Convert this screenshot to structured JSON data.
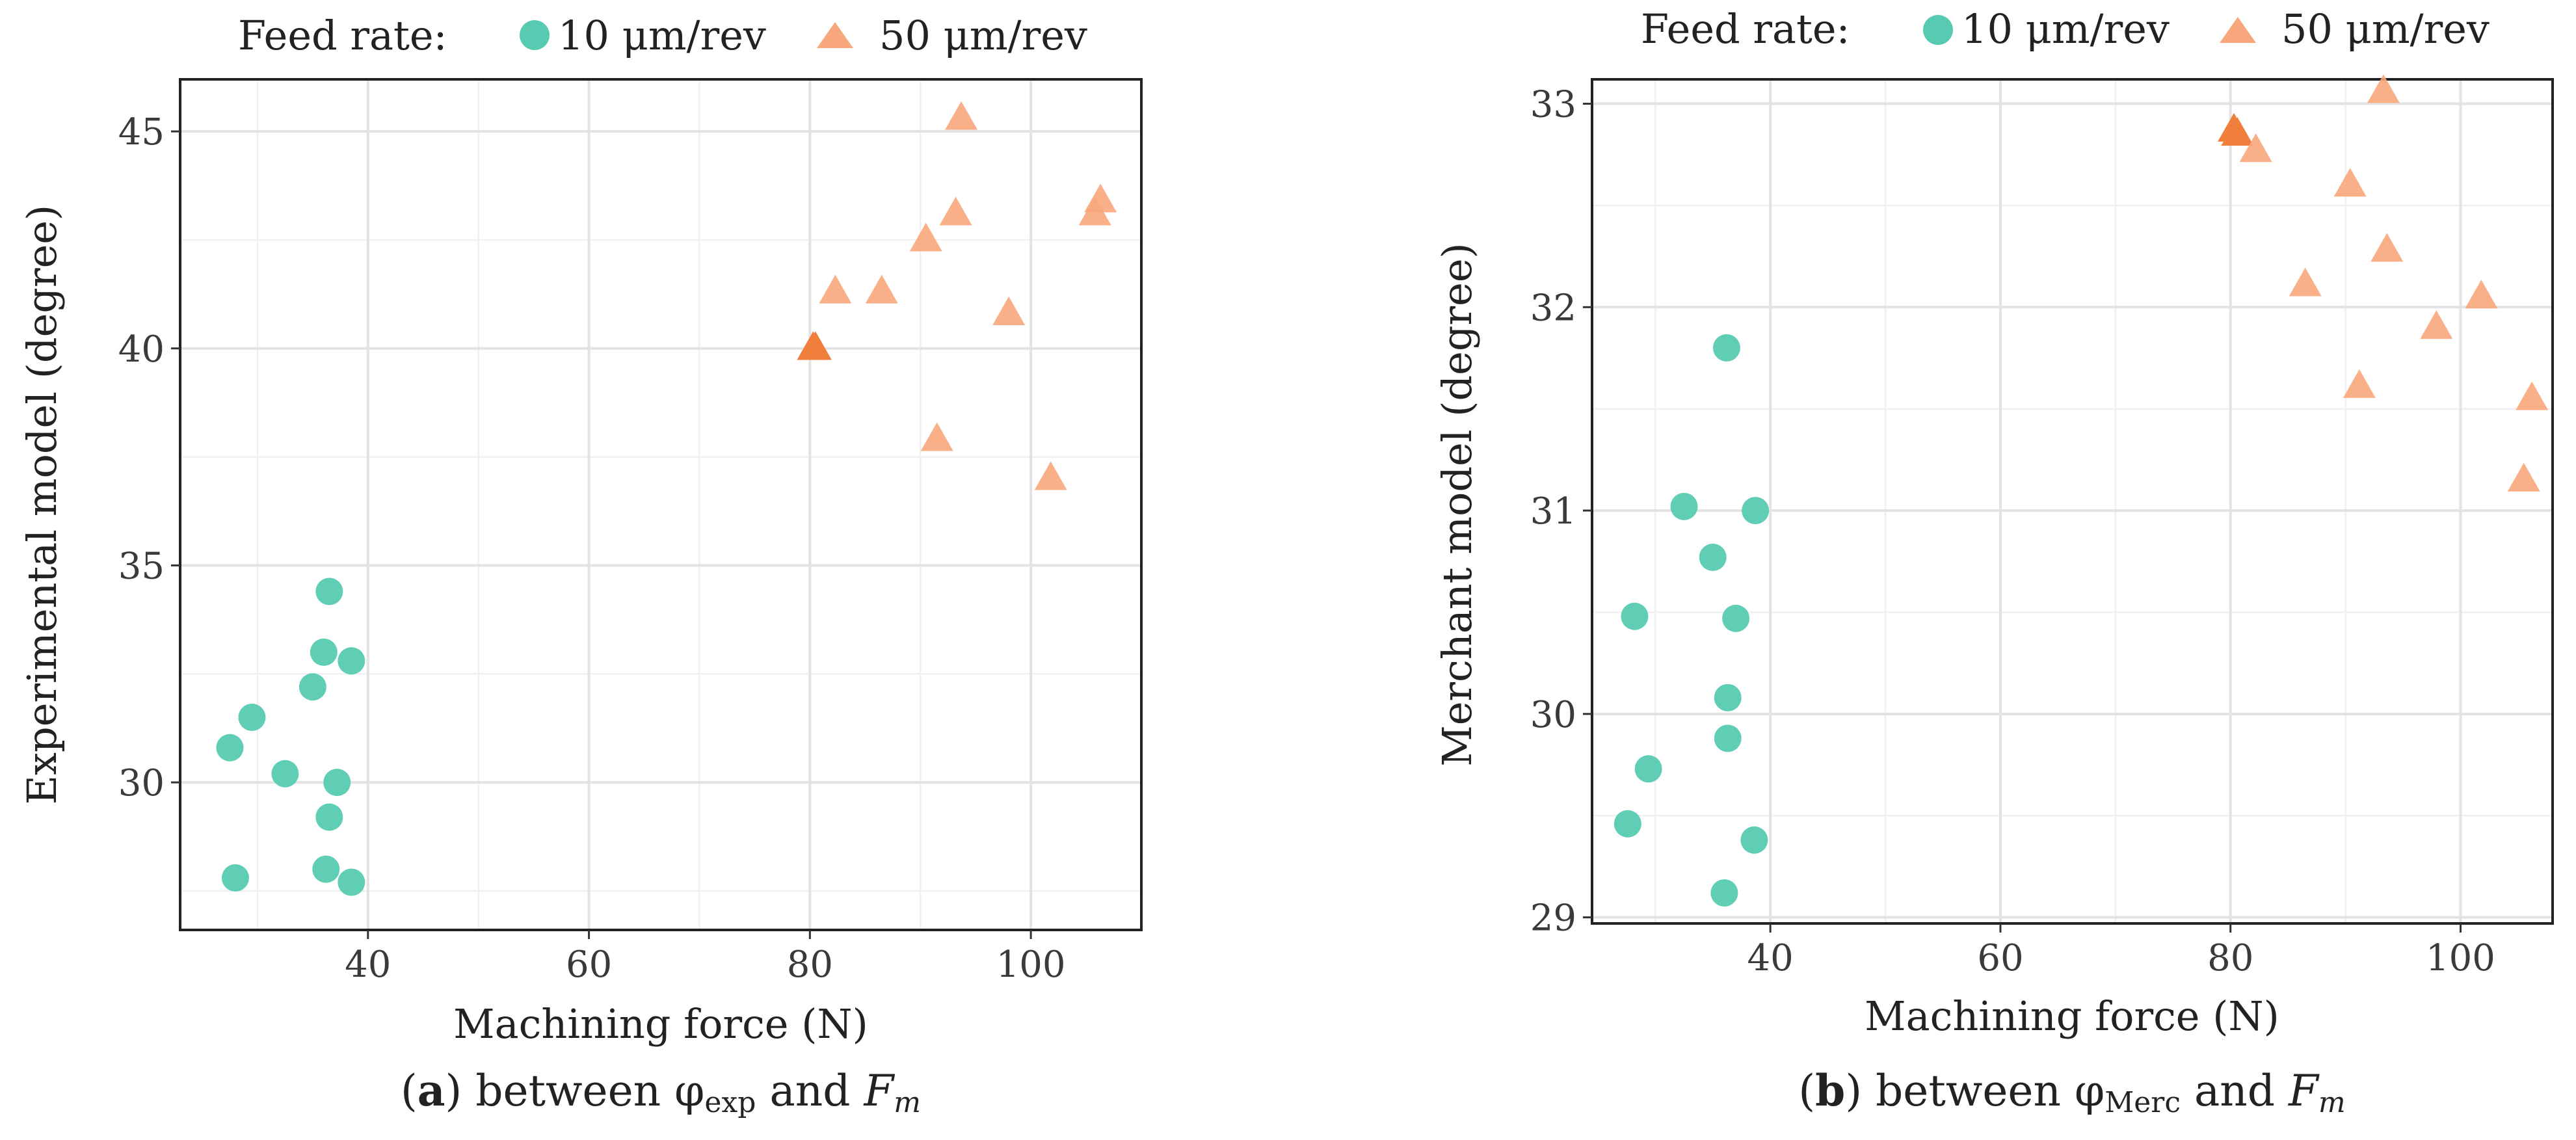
{
  "colors": {
    "series_10": "#56cbb1",
    "series_50": "#f8a77c",
    "series_50_dark": "#f07f3c",
    "grid": "#e3e3e3",
    "text": "#222222"
  },
  "legend": {
    "title": "Feed rate:",
    "items": [
      "10 μm/rev",
      "50 μm/rev"
    ]
  },
  "chart_data": [
    {
      "type": "scatter",
      "id": "a",
      "xlabel": "Machining force (N)",
      "ylabel": "Experimental  model (degree)",
      "xlim": [
        23,
        110
      ],
      "ylim": [
        26.6,
        46.2
      ],
      "xticks": [
        40,
        60,
        80,
        100
      ],
      "yticks": [
        30,
        35,
        40,
        45
      ],
      "caption": {
        "letter": "a",
        "open": "(",
        "close": ")",
        "text": " between φ",
        "sub": "exp",
        "and": " and ",
        "var": "F",
        "var_sub": "m"
      },
      "series": [
        {
          "name": "10 μm/rev",
          "marker": "circle",
          "x": [
            36.5,
            36.0,
            38.5,
            35.0,
            29.5,
            27.5,
            32.5,
            37.2,
            36.5,
            36.2,
            28.0,
            38.5
          ],
          "y": [
            34.4,
            33.0,
            32.8,
            32.2,
            31.5,
            30.8,
            30.2,
            30.0,
            29.2,
            28.0,
            27.8,
            27.7
          ]
        },
        {
          "name": "50 μm/rev",
          "marker": "triangle",
          "x": [
            93.7,
            105.8,
            106.3,
            93.2,
            90.5,
            82.3,
            86.5,
            98.0,
            80.3,
            80.5,
            91.5,
            101.8
          ],
          "y": [
            45.3,
            43.1,
            43.4,
            43.1,
            42.5,
            41.3,
            41.3,
            40.8,
            40.0,
            40.0,
            37.9,
            37.0
          ],
          "dark": [
            false,
            false,
            false,
            false,
            false,
            false,
            false,
            false,
            true,
            true,
            false,
            false
          ]
        }
      ]
    },
    {
      "type": "scatter",
      "id": "b",
      "xlabel": "Machining force (N)",
      "ylabel": "Merchant model (degree)",
      "xlim": [
        24.5,
        108
      ],
      "ylim": [
        28.97,
        33.12
      ],
      "xticks": [
        40,
        60,
        80,
        100
      ],
      "yticks": [
        29,
        30,
        31,
        32,
        33
      ],
      "caption": {
        "letter": "b",
        "open": "(",
        "close": ")",
        "text": " between φ",
        "sub": "Merc",
        "and": " and ",
        "var": "F",
        "var_sub": "m"
      },
      "series": [
        {
          "name": "10 μm/rev",
          "marker": "circle",
          "x": [
            36.2,
            32.5,
            38.7,
            35.0,
            28.2,
            37.0,
            36.3,
            36.3,
            29.4,
            27.6,
            38.6,
            36.0
          ],
          "y": [
            31.8,
            31.02,
            31.0,
            30.77,
            30.48,
            30.47,
            30.08,
            29.88,
            29.73,
            29.46,
            29.38,
            29.12
          ]
        },
        {
          "name": "50 μm/rev",
          "marker": "triangle",
          "x": [
            93.3,
            80.3,
            80.6,
            82.2,
            90.4,
            93.6,
            86.5,
            101.8,
            97.9,
            91.2,
            106.2,
            105.5
          ],
          "y": [
            33.06,
            32.87,
            32.85,
            32.77,
            32.6,
            32.28,
            32.11,
            32.05,
            31.9,
            31.61,
            31.55,
            31.15
          ],
          "dark": [
            false,
            true,
            true,
            false,
            false,
            false,
            false,
            false,
            false,
            false,
            false,
            false
          ]
        }
      ]
    }
  ]
}
